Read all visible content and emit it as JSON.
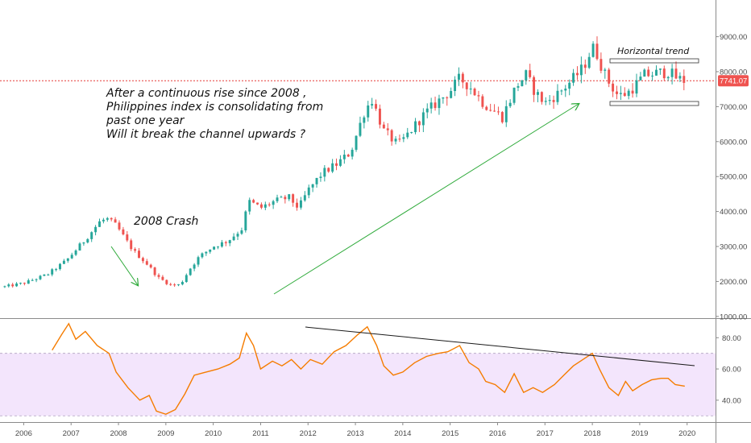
{
  "colors": {
    "up": "#26a69a",
    "down": "#ef5350",
    "rsi_line": "#f57c00",
    "rsi_band": "#f3e5fc",
    "arrows": "#2eaa3a",
    "price_line": "#e53935",
    "trend_line": "#1a1a1a",
    "axis_text": "#4a4a4a"
  },
  "annotations": {
    "main_text": [
      "After a continuous rise since 2008 ,",
      "Philippines index is consolidating from",
      "past one year",
      "Will it break the channel upwards ?"
    ],
    "crash_label": "2008 Crash",
    "horizontal_trend_label": "Horizontal trend",
    "current_price_label": "7741.07"
  },
  "chart_data": [
    {
      "type": "candlestick",
      "title": "",
      "x_axis": {
        "ticks": [
          "2006",
          "2007",
          "2008",
          "2009",
          "2010",
          "2011",
          "2012",
          "2013",
          "2014",
          "2015",
          "2016",
          "2017",
          "2018",
          "2019",
          "2020"
        ],
        "range": [
          2005.5,
          2020.6
        ]
      },
      "y_axis": {
        "ticks": [
          1000,
          2000,
          3000,
          4000,
          5000,
          6000,
          7000,
          8000,
          9000
        ],
        "tick_labels": [
          "1000.00",
          "2000.00",
          "3000.00",
          "4000.00",
          "5000.00",
          "6000.00",
          "7000.00",
          "8000.00",
          "9000.00"
        ],
        "range": [
          950,
          10050
        ]
      },
      "current_price": 7741.07,
      "anchors": [
        [
          2005.6,
          1850
        ],
        [
          2006.0,
          1950
        ],
        [
          2006.5,
          2200
        ],
        [
          2006.9,
          2600
        ],
        [
          2007.3,
          3200
        ],
        [
          2007.6,
          3700
        ],
        [
          2007.75,
          3800
        ],
        [
          2007.95,
          3600
        ],
        [
          2008.3,
          2900
        ],
        [
          2008.6,
          2500
        ],
        [
          2008.85,
          2100
        ],
        [
          2009.1,
          1900
        ],
        [
          2009.3,
          1900
        ],
        [
          2009.5,
          2350
        ],
        [
          2009.7,
          2700
        ],
        [
          2010.0,
          3000
        ],
        [
          2010.3,
          3150
        ],
        [
          2010.6,
          3500
        ],
        [
          2010.75,
          4300
        ],
        [
          2011.0,
          4100
        ],
        [
          2011.3,
          4300
        ],
        [
          2011.6,
          4400
        ],
        [
          2011.8,
          4100
        ],
        [
          2012.0,
          4600
        ],
        [
          2012.3,
          5100
        ],
        [
          2012.6,
          5350
        ],
        [
          2012.9,
          5700
        ],
        [
          2013.2,
          6900
        ],
        [
          2013.35,
          7200
        ],
        [
          2013.6,
          6300
        ],
        [
          2013.9,
          5900
        ],
        [
          2014.1,
          6200
        ],
        [
          2014.4,
          6700
        ],
        [
          2014.7,
          7100
        ],
        [
          2015.0,
          7450
        ],
        [
          2015.2,
          7800
        ],
        [
          2015.4,
          7600
        ],
        [
          2015.7,
          7100
        ],
        [
          2015.9,
          6900
        ],
        [
          2016.1,
          6700
        ],
        [
          2016.4,
          7600
        ],
        [
          2016.6,
          7900
        ],
        [
          2016.8,
          7400
        ],
        [
          2017.0,
          7100
        ],
        [
          2017.3,
          7400
        ],
        [
          2017.6,
          7800
        ],
        [
          2017.8,
          8100
        ],
        [
          2018.0,
          8700
        ],
        [
          2018.1,
          8500
        ],
        [
          2018.3,
          7800
        ],
        [
          2018.55,
          7300
        ],
        [
          2018.75,
          7400
        ],
        [
          2018.9,
          7600
        ],
        [
          2019.1,
          7900
        ],
        [
          2019.35,
          7950
        ],
        [
          2019.6,
          8000
        ],
        [
          2019.8,
          7800
        ],
        [
          2019.95,
          7741
        ]
      ]
    },
    {
      "type": "line",
      "title": "",
      "series": [
        {
          "values": "rsi"
        }
      ],
      "y_axis": {
        "ticks": [
          40,
          60,
          80
        ],
        "tick_labels": [
          "40.00",
          "60.00",
          "80.00"
        ],
        "range": [
          26,
          92
        ],
        "band": [
          30,
          70
        ]
      },
      "points": [
        [
          2006.6,
          72
        ],
        [
          2006.8,
          82
        ],
        [
          2006.95,
          89
        ],
        [
          2007.1,
          79
        ],
        [
          2007.3,
          84
        ],
        [
          2007.55,
          75
        ],
        [
          2007.8,
          70
        ],
        [
          2007.95,
          58
        ],
        [
          2008.2,
          48
        ],
        [
          2008.45,
          40
        ],
        [
          2008.65,
          43
        ],
        [
          2008.8,
          33
        ],
        [
          2009.0,
          31
        ],
        [
          2009.2,
          34
        ],
        [
          2009.4,
          44
        ],
        [
          2009.6,
          56
        ],
        [
          2009.85,
          58
        ],
        [
          2010.1,
          60
        ],
        [
          2010.35,
          63
        ],
        [
          2010.55,
          67
        ],
        [
          2010.7,
          83
        ],
        [
          2010.85,
          75
        ],
        [
          2011.0,
          60
        ],
        [
          2011.25,
          65
        ],
        [
          2011.45,
          62
        ],
        [
          2011.65,
          66
        ],
        [
          2011.85,
          60
        ],
        [
          2012.05,
          66
        ],
        [
          2012.3,
          63
        ],
        [
          2012.55,
          71
        ],
        [
          2012.8,
          75
        ],
        [
          2013.05,
          82
        ],
        [
          2013.25,
          87
        ],
        [
          2013.45,
          75
        ],
        [
          2013.6,
          62
        ],
        [
          2013.8,
          56
        ],
        [
          2014.0,
          58
        ],
        [
          2014.25,
          64
        ],
        [
          2014.5,
          68
        ],
        [
          2014.75,
          70
        ],
        [
          2014.95,
          71
        ],
        [
          2015.2,
          75
        ],
        [
          2015.4,
          64
        ],
        [
          2015.6,
          60
        ],
        [
          2015.75,
          52
        ],
        [
          2015.95,
          50
        ],
        [
          2016.15,
          45
        ],
        [
          2016.35,
          57
        ],
        [
          2016.55,
          45
        ],
        [
          2016.75,
          48
        ],
        [
          2016.95,
          45
        ],
        [
          2017.2,
          50
        ],
        [
          2017.4,
          56
        ],
        [
          2017.6,
          62
        ],
        [
          2017.8,
          66
        ],
        [
          2018.0,
          70
        ],
        [
          2018.15,
          60
        ],
        [
          2018.35,
          48
        ],
        [
          2018.55,
          43
        ],
        [
          2018.7,
          52
        ],
        [
          2018.85,
          46
        ],
        [
          2019.05,
          50
        ],
        [
          2019.25,
          53
        ],
        [
          2019.45,
          54
        ],
        [
          2019.6,
          54
        ],
        [
          2019.75,
          50
        ],
        [
          2019.95,
          49
        ]
      ]
    }
  ]
}
